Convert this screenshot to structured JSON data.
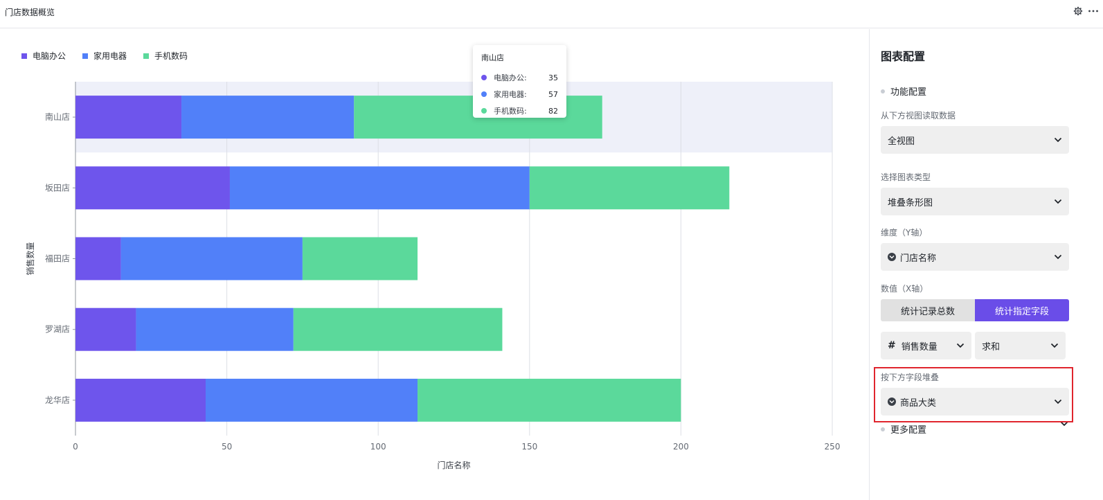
{
  "header": {
    "title": "门店数据概览",
    "icons": [
      "gear-icon",
      "more-icon"
    ]
  },
  "legend": {
    "items": [
      {
        "label": "电脑办公",
        "color": "#6e55ec"
      },
      {
        "label": "家用电器",
        "color": "#5180f9"
      },
      {
        "label": "手机数码",
        "color": "#5bd99b"
      }
    ]
  },
  "tooltip": {
    "title": "南山店",
    "rows": [
      {
        "label": "电脑办公:",
        "value": "35",
        "color": "#6e55ec"
      },
      {
        "label": "家用电器:",
        "value": "57",
        "color": "#5180f9"
      },
      {
        "label": "手机数码:",
        "value": "82",
        "color": "#5bd99b"
      }
    ]
  },
  "chart_data": {
    "type": "bar",
    "orientation": "horizontal",
    "stacked": true,
    "categories": [
      "南山店",
      "坂田店",
      "福田店",
      "罗湖店",
      "龙华店"
    ],
    "series": [
      {
        "name": "电脑办公",
        "color": "#6e55ec",
        "values": [
          35,
          51,
          15,
          20,
          43
        ]
      },
      {
        "name": "家用电器",
        "color": "#5180f9",
        "values": [
          57,
          99,
          60,
          52,
          70
        ]
      },
      {
        "name": "手机数码",
        "color": "#5bd99b",
        "values": [
          82,
          66,
          38,
          69,
          87
        ]
      }
    ],
    "xlim": [
      0,
      250
    ],
    "xticks": [
      "0",
      "50",
      "100",
      "150",
      "200",
      "250"
    ],
    "xlabel": "门店名称",
    "ylabel": "销售数量",
    "highlighted_category": "南山店",
    "grid": true,
    "legend_position": "top-left"
  },
  "panel": {
    "title": "图表配置",
    "section_function": "功能配置",
    "source_label": "从下方视图读取数据",
    "source_value": "全视图",
    "type_label": "选择图表类型",
    "type_value": "堆叠条形图",
    "dimension_label": "维度（Y轴）",
    "dimension_value": "门店名称",
    "value_label": "数值（X轴）",
    "seg_count": "统计记录总数",
    "seg_field": "统计指定字段",
    "field_value": "销售数量",
    "agg_value": "求和",
    "stack_label": "按下方字段堆叠",
    "stack_value": "商品大类",
    "section_more": "更多配置"
  }
}
